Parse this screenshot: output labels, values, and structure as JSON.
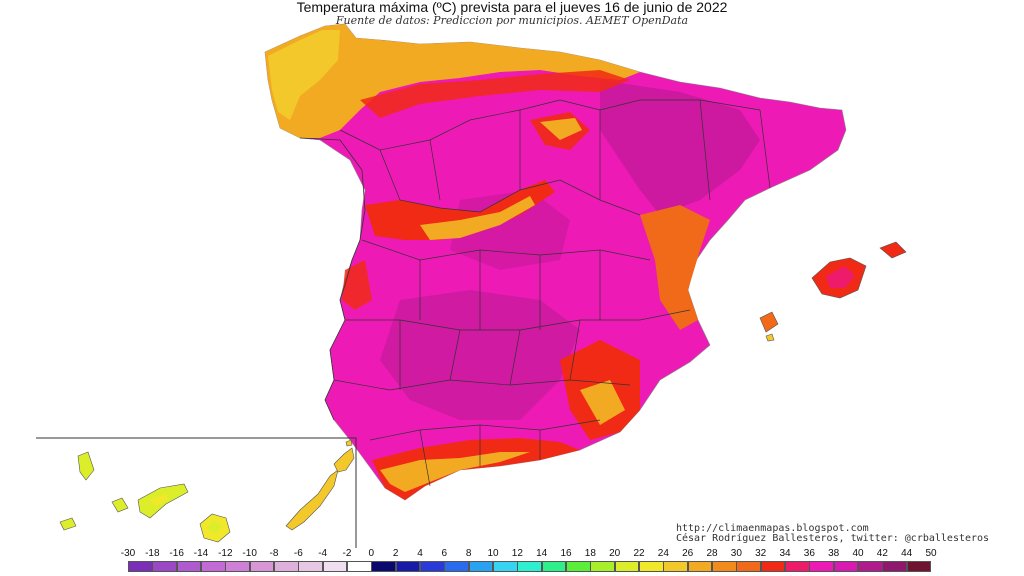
{
  "header": {
    "title": "Temperatura máxima (ºC) prevista para el jueves 16 de junio de 2022",
    "subtitle": "Fuente de datos: Prediccion por municipios. AEMET OpenData"
  },
  "credits": {
    "url": "http://climaenmapas.blogspot.com",
    "author": "César Rodríguez Ballesteros, twitter: @crballesteros"
  },
  "legend": {
    "unit": "ºC",
    "ticks": [
      "-30",
      "-18",
      "-16",
      "-14",
      "-12",
      "-10",
      "-8",
      "-6",
      "-4",
      "-2",
      "0",
      "2",
      "4",
      "6",
      "8",
      "10",
      "12",
      "14",
      "16",
      "18",
      "20",
      "22",
      "24",
      "26",
      "28",
      "30",
      "32",
      "34",
      "36",
      "38",
      "40",
      "42",
      "44",
      "50"
    ],
    "colors": [
      "#7b2fb8",
      "#9b48c6",
      "#b05ad0",
      "#c46ad6",
      "#cf80d6",
      "#d996d6",
      "#dfb0dc",
      "#e6c8e4",
      "#f0dff0",
      "#ffffff",
      "#0a0a6e",
      "#1a1aa8",
      "#2a3ad8",
      "#2a6aee",
      "#2aa2f2",
      "#36d4f2",
      "#2ef0d0",
      "#2ef08a",
      "#5af03a",
      "#a8f02a",
      "#dcee2a",
      "#f2e82a",
      "#f2c82a",
      "#f2aa22",
      "#f28a1c",
      "#f06a1a",
      "#f02a14",
      "#ee1a6a",
      "#ee1ab6",
      "#d81ab0",
      "#b01a8c",
      "#90186c",
      "#6e1430"
    ]
  },
  "map": {
    "regions": [
      "Península",
      "Islas Baleares",
      "Islas Canarias"
    ],
    "colors": {
      "sea": "#ffffff",
      "temp_30": "#f06a1a",
      "temp_32": "#f02a14",
      "temp_34": "#ee1a6a",
      "temp_36": "#ee1ab6",
      "temp_38": "#d81ab0",
      "temp_40": "#b01a8c",
      "temp_26": "#f2c82a",
      "temp_24": "#dcee2a",
      "border": "#333333"
    }
  }
}
